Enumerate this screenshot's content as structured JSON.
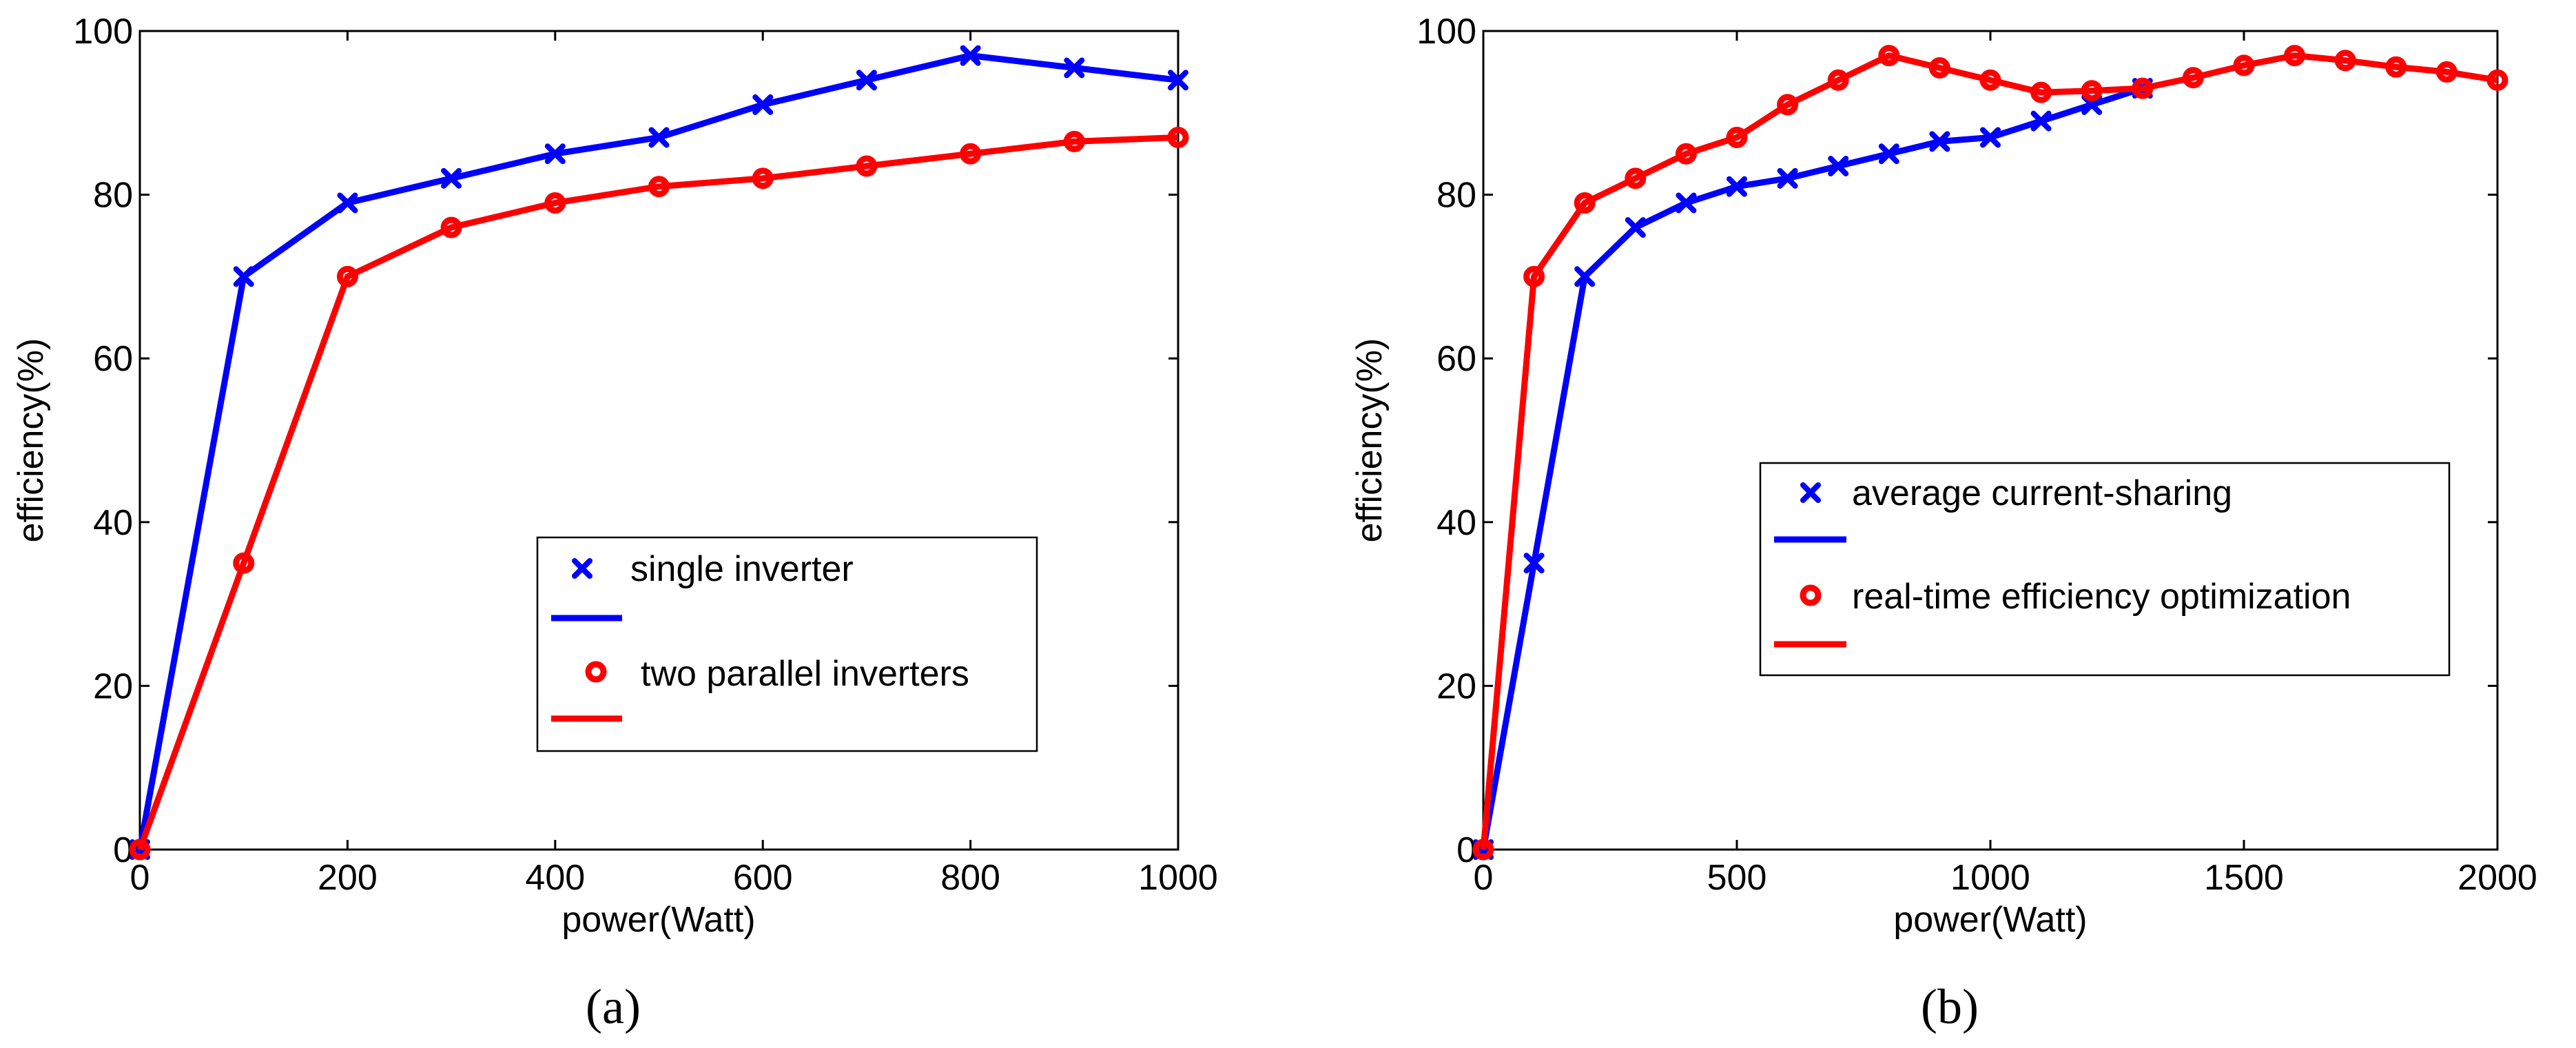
{
  "chart_data": [
    {
      "type": "line",
      "panel_label": "(a)",
      "xlabel": "power(Watt)",
      "ylabel": "efficiency(%)",
      "xlim": [
        0,
        1000
      ],
      "ylim": [
        0,
        100
      ],
      "xticks": [
        0,
        200,
        400,
        600,
        800,
        1000
      ],
      "yticks": [
        0,
        20,
        40,
        60,
        80,
        100
      ],
      "grid": false,
      "legend_position": "center-right",
      "series": [
        {
          "name": "single inverter",
          "color": "#0000ff",
          "marker": "x",
          "x": [
            0,
            100,
            200,
            300,
            400,
            500,
            600,
            700,
            800,
            900,
            1000
          ],
          "y": [
            0,
            70,
            79,
            82,
            85,
            87,
            91,
            94,
            97,
            95.5,
            94
          ]
        },
        {
          "name": "two parallel inverters",
          "color": "#ff0000",
          "marker": "o",
          "x": [
            0,
            100,
            200,
            300,
            400,
            500,
            600,
            700,
            800,
            900,
            1000
          ],
          "y": [
            0,
            35,
            70,
            76,
            79,
            81,
            82,
            83.5,
            85,
            86.5,
            87
          ]
        }
      ]
    },
    {
      "type": "line",
      "panel_label": "(b)",
      "xlabel": "power(Watt)",
      "ylabel": "efficiency(%)",
      "xlim": [
        0,
        2000
      ],
      "ylim": [
        0,
        100
      ],
      "xticks": [
        0,
        500,
        1000,
        1500,
        2000
      ],
      "yticks": [
        0,
        20,
        40,
        60,
        80,
        100
      ],
      "grid": false,
      "legend_position": "center-right",
      "series": [
        {
          "name": "average current-sharing",
          "color": "#0000ff",
          "marker": "x",
          "x": [
            0,
            100,
            200,
            300,
            400,
            500,
            600,
            700,
            800,
            900,
            1000,
            1100,
            1200,
            1300
          ],
          "y": [
            0,
            35,
            70,
            76,
            79,
            81,
            82,
            83.5,
            85,
            86.5,
            87,
            89,
            91,
            93
          ]
        },
        {
          "name": "real-time efficiency optimization",
          "color": "#ff0000",
          "marker": "o",
          "x": [
            0,
            100,
            200,
            300,
            400,
            500,
            600,
            700,
            800,
            900,
            1000,
            1100,
            1200,
            1300,
            1400,
            1500,
            1600,
            1700,
            1800,
            1900,
            2000
          ],
          "y": [
            0,
            70,
            79,
            82,
            85,
            87,
            91,
            94,
            97,
            95.5,
            94,
            92.5,
            92.7,
            93,
            94.3,
            95.8,
            97,
            96.4,
            95.6,
            95,
            94
          ]
        }
      ]
    }
  ]
}
